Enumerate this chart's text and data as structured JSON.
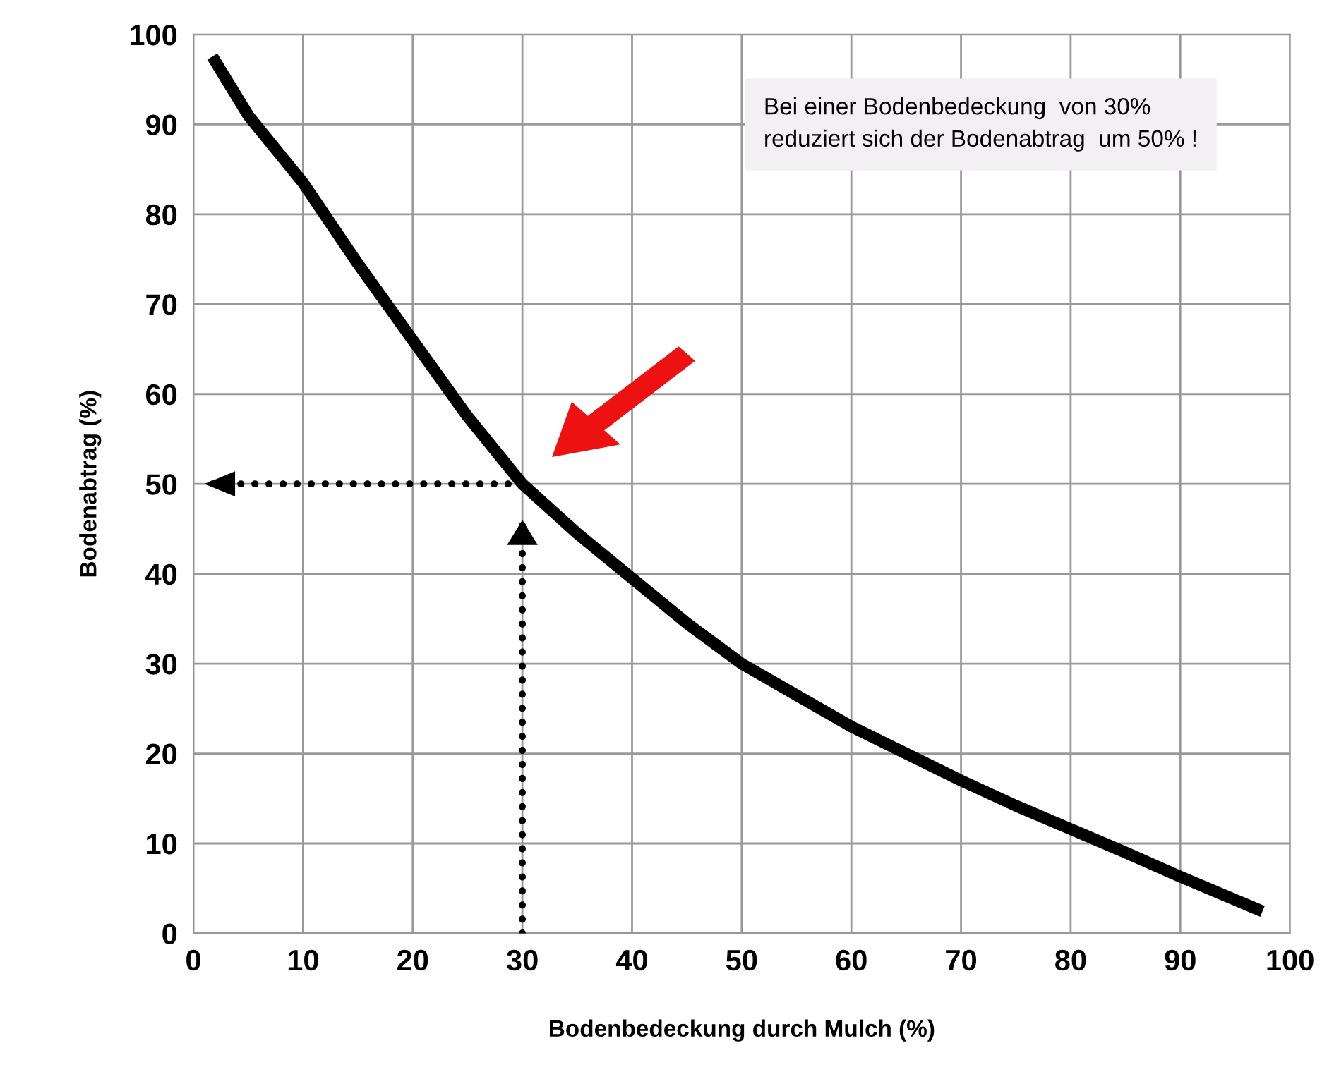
{
  "chart_data": {
    "type": "line",
    "xlabel": "Bodenbedeckung durch Mulch (%)",
    "ylabel": "Bodenabtrag (%)",
    "series": [
      {
        "color": "#000000",
        "x": [
          2,
          5,
          10,
          15,
          20,
          25,
          30,
          35,
          40,
          45,
          50,
          55,
          60,
          65,
          70,
          75,
          80,
          85,
          90,
          97
        ],
        "values": [
          97,
          91,
          83.5,
          74.5,
          66,
          57.5,
          50,
          44.5,
          39.5,
          34.5,
          30,
          26.5,
          23,
          20,
          17,
          14.2,
          11.6,
          9,
          6.3,
          2.7
        ]
      },
      {
        "color": "#000000",
        "line_style": "dotted",
        "x": [
          30,
          1
        ],
        "values": [
          50,
          50
        ]
      },
      {
        "color": "#000000",
        "line_style": "dotted",
        "x": [
          30,
          30
        ],
        "values": [
          0,
          46
        ]
      }
    ],
    "annotations": [
      "Bei einer Bodenbedeckung  von 30%\nreduziert sich der Bodenabtrag  um 50% !"
    ],
    "xlim": [
      0,
      100
    ],
    "ylim": [
      0,
      100
    ],
    "xticks": [
      0,
      10,
      20,
      30,
      40,
      50,
      60,
      70,
      80,
      90,
      100
    ],
    "yticks": [
      0,
      10,
      20,
      30,
      40,
      50,
      60,
      70,
      80,
      90,
      100
    ],
    "grid": true,
    "legend": false,
    "marker": "none",
    "line_style": "solid"
  }
}
